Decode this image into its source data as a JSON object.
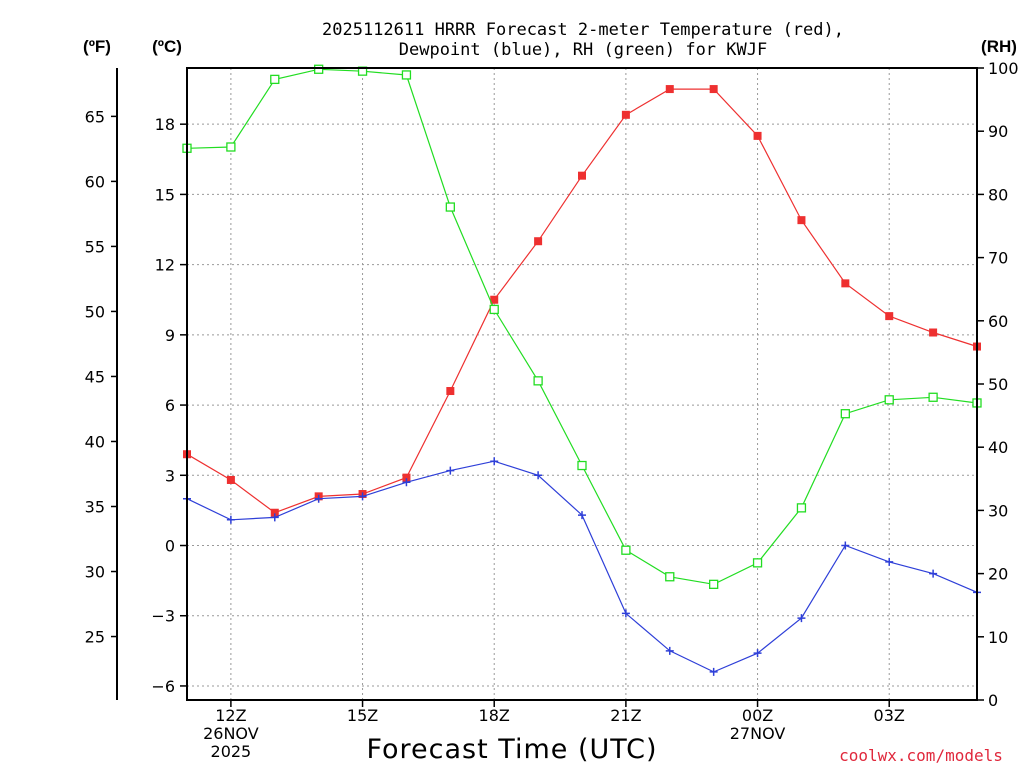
{
  "chart_data": {
    "type": "line",
    "title_line1": "2025112611 HRRR Forecast 2-meter Temperature (red),",
    "title_line2": "Dewpoint (blue), RH (green) for KWJF",
    "xlabel": "Forecast Time (UTC)",
    "credit": "coolwx.com/models",
    "unit_labels": {
      "fahrenheit": "(ºF)",
      "celsius": "(ºC)",
      "rh": "(RH)"
    },
    "x_hours": [
      11,
      12,
      13,
      14,
      15,
      16,
      17,
      18,
      19,
      20,
      21,
      22,
      23,
      24,
      25,
      26,
      27,
      28,
      29
    ],
    "xlim": [
      11,
      29
    ],
    "x_ticks": [
      {
        "hour": 12,
        "lines": [
          "12Z",
          "26NOV",
          "2025"
        ]
      },
      {
        "hour": 15,
        "lines": [
          "15Z"
        ]
      },
      {
        "hour": 18,
        "lines": [
          "18Z"
        ]
      },
      {
        "hour": 21,
        "lines": [
          "21Z"
        ]
      },
      {
        "hour": 24,
        "lines": [
          "00Z",
          "27NOV"
        ]
      },
      {
        "hour": 27,
        "lines": [
          "03Z"
        ]
      }
    ],
    "celsius_axis": {
      "ylim": [
        -6.6,
        20.4
      ],
      "ticks": [
        -6,
        -3,
        0,
        3,
        6,
        9,
        12,
        15,
        18
      ],
      "tick_labels": [
        "−6",
        "−3",
        "0",
        "3",
        "6",
        "9",
        "12",
        "15",
        "18"
      ]
    },
    "fahrenheit_axis": {
      "ticks": [
        25,
        30,
        35,
        40,
        45,
        50,
        55,
        60,
        65
      ],
      "tick_labels": [
        "25",
        "30",
        "35",
        "40",
        "45",
        "50",
        "55",
        "60",
        "65"
      ]
    },
    "rh_axis": {
      "ylim": [
        0,
        100
      ],
      "ticks": [
        0,
        10,
        20,
        30,
        40,
        50,
        60,
        70,
        80,
        90,
        100
      ],
      "tick_labels": [
        "0",
        "10",
        "20",
        "30",
        "40",
        "50",
        "60",
        "70",
        "80",
        "90",
        "100"
      ]
    },
    "series": [
      {
        "name": "Temperature",
        "unit": "C",
        "axis": "celsius",
        "color": "#ee3030",
        "marker": "filled-square",
        "values": [
          3.9,
          2.8,
          1.4,
          2.1,
          2.2,
          2.9,
          6.6,
          10.5,
          13.0,
          15.8,
          18.4,
          19.5,
          19.5,
          17.5,
          13.9,
          11.2,
          9.8,
          9.1,
          8.5
        ]
      },
      {
        "name": "Dewpoint",
        "unit": "C",
        "axis": "celsius",
        "color": "#2e3fd8",
        "marker": "plus",
        "values": [
          2.0,
          1.1,
          1.2,
          2.0,
          2.1,
          2.7,
          3.2,
          3.6,
          3.0,
          1.3,
          -2.9,
          -4.5,
          -5.4,
          -4.6,
          -3.1,
          0.0,
          -0.7,
          -1.2,
          -2.0
        ]
      },
      {
        "name": "RH",
        "unit": "%",
        "axis": "rh",
        "color": "#22dd22",
        "marker": "open-square",
        "values": [
          87.3,
          87.5,
          98.2,
          99.8,
          99.5,
          98.9,
          78.0,
          61.8,
          50.5,
          37.1,
          23.7,
          19.5,
          18.3,
          21.7,
          30.4,
          45.3,
          47.5,
          47.9,
          47.0
        ]
      }
    ],
    "grid": true
  },
  "colors": {
    "temperature": "#ee3030",
    "dewpoint": "#2e3fd8",
    "rh": "#22dd22",
    "grid": "#999999",
    "credit": "#e0283c"
  }
}
